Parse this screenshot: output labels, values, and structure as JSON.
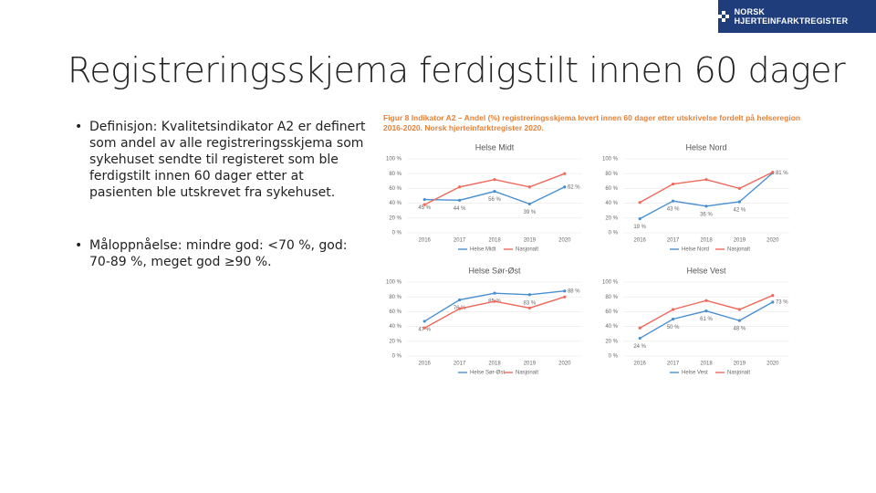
{
  "logo": "NORSK HJERTEINFARKTREGISTER",
  "title": "Registreringsskjema ferdigstilt innen 60 dager",
  "bullets": [
    "Definisjon: Kvalitetsindikator A2 er definert som andel av alle registreringsskjema som sykehuset sendte til registeret som ble ferdigstilt innen 60 dager etter at pasienten ble utskrevet fra sykehuset.",
    "Måloppnåelse: mindre god: <70 %, god: 70-89 %, meget god ≥90 %."
  ],
  "caption": "Figur 8 Indikator A2 – Andel (%) registreringsskjema levert innen 60 dager etter utskrivelse fordelt på helseregion 2016-2020. Norsk hjerteinfarktregister 2020.",
  "chart_data": [
    {
      "type": "line",
      "title": "Helse Midt",
      "categories": [
        "2016",
        "2017",
        "2018",
        "2019",
        "2020"
      ],
      "series": [
        {
          "name": "Helse Midt",
          "color": "#4a8fd0",
          "values": [
            45,
            44,
            56,
            39,
            62
          ],
          "value_labels": [
            "45 %",
            "44 %",
            "56 %",
            "39 %",
            "62 %"
          ]
        },
        {
          "name": "Nasjonalt",
          "color": "#f0685a",
          "values": [
            38,
            62,
            72,
            62,
            80
          ]
        }
      ],
      "ylim": [
        0,
        100
      ],
      "yticks": [
        {
          "value": 0,
          "label": "0 %"
        },
        {
          "value": 20,
          "label": "20 %"
        },
        {
          "value": 40,
          "label": "40 %"
        },
        {
          "value": 60,
          "label": "60 %"
        },
        {
          "value": 80,
          "label": "80 %"
        },
        {
          "value": 100,
          "label": "100 %"
        }
      ]
    },
    {
      "type": "line",
      "title": "Helse Nord",
      "categories": [
        "2016",
        "2017",
        "2018",
        "2019",
        "2020"
      ],
      "series": [
        {
          "name": "Helse Nord",
          "color": "#4a8fd0",
          "values": [
            19,
            43,
            36,
            42,
            81
          ],
          "value_labels": [
            "19 %",
            "43 %",
            "36 %",
            "42 %",
            "81 %"
          ]
        },
        {
          "name": "Nasjonalt",
          "color": "#f0685a",
          "values": [
            41,
            66,
            72,
            60,
            82
          ]
        }
      ],
      "ylim": [
        0,
        100
      ],
      "yticks": [
        {
          "value": 0,
          "label": "0 %"
        },
        {
          "value": 20,
          "label": "20 %"
        },
        {
          "value": 40,
          "label": "40 %"
        },
        {
          "value": 60,
          "label": "60 %"
        },
        {
          "value": 80,
          "label": "80 %"
        },
        {
          "value": 100,
          "label": "100 %"
        }
      ]
    },
    {
      "type": "line",
      "title": "Helse Sør-Øst",
      "categories": [
        "2016",
        "2017",
        "2018",
        "2019",
        "2020"
      ],
      "series": [
        {
          "name": "Helse Sør-Øst",
          "color": "#4a8fd0",
          "values": [
            47,
            76,
            85,
            83,
            88
          ],
          "value_labels": [
            "47 %",
            "76 %",
            "85 %",
            "83 %",
            "88 %"
          ]
        },
        {
          "name": "Nasjonalt",
          "color": "#f0685a",
          "values": [
            38,
            64,
            74,
            65,
            80
          ]
        }
      ],
      "ylim": [
        0,
        100
      ],
      "yticks": [
        {
          "value": 0,
          "label": "0 %"
        },
        {
          "value": 20,
          "label": "20 %"
        },
        {
          "value": 40,
          "label": "40 %"
        },
        {
          "value": 60,
          "label": "60 %"
        },
        {
          "value": 80,
          "label": "80 %"
        },
        {
          "value": 100,
          "label": "100 %"
        }
      ]
    },
    {
      "type": "line",
      "title": "Helse Vest",
      "categories": [
        "2016",
        "2017",
        "2018",
        "2019",
        "2020"
      ],
      "series": [
        {
          "name": "Helse Vest",
          "color": "#4a8fd0",
          "values": [
            24,
            50,
            61,
            48,
            73
          ],
          "value_labels": [
            "24 %",
            "50 %",
            "61 %",
            "48 %",
            "73 %"
          ]
        },
        {
          "name": "Nasjonalt",
          "color": "#f0685a",
          "values": [
            38,
            63,
            75,
            63,
            82
          ]
        }
      ],
      "ylim": [
        0,
        100
      ],
      "yticks": [
        {
          "value": 0,
          "label": "0 %"
        },
        {
          "value": 20,
          "label": "20 %"
        },
        {
          "value": 40,
          "label": "40 %"
        },
        {
          "value": 60,
          "label": "60 %"
        },
        {
          "value": 80,
          "label": "80 %"
        },
        {
          "value": 100,
          "label": "100 %"
        }
      ]
    }
  ]
}
